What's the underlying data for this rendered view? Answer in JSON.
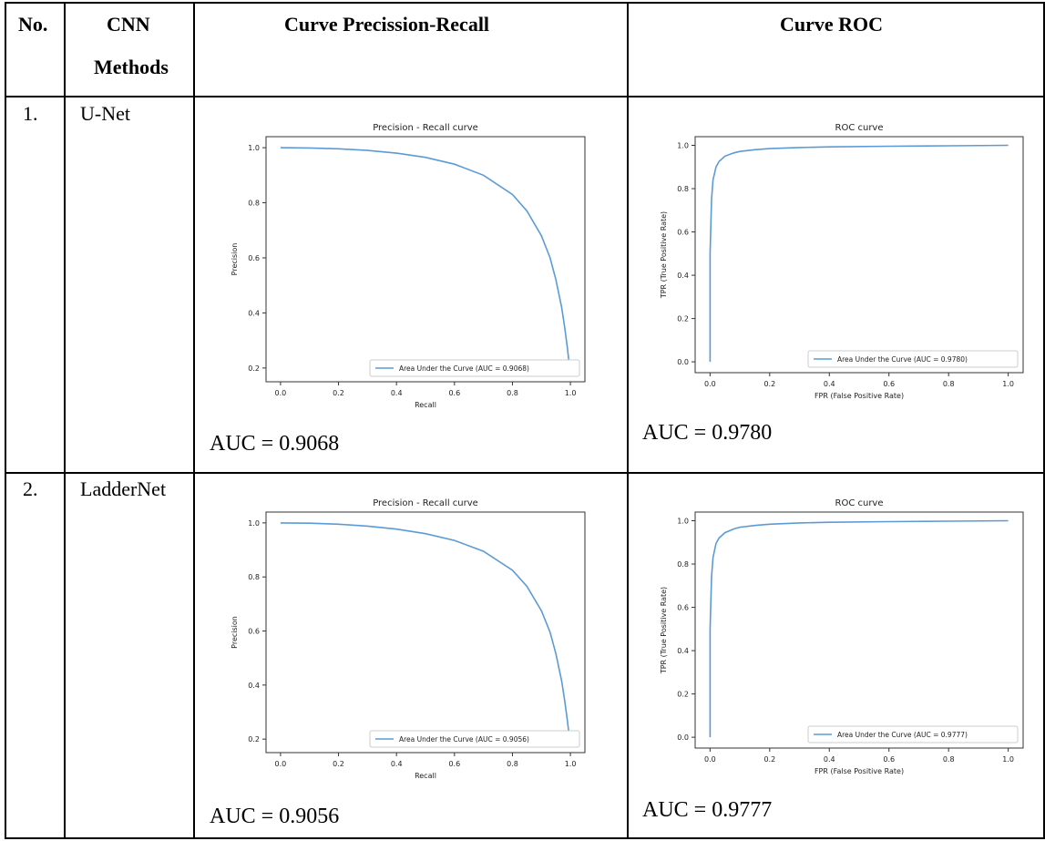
{
  "header": {
    "col_no": "No.",
    "col_method_1": "CNN",
    "col_method_2": "Methods",
    "col_pr": "Curve Precission-Recall",
    "col_roc": "Curve ROC"
  },
  "rows": [
    {
      "no": "1.",
      "method": "U-Net",
      "pr_auc_text": "AUC = 0.9068",
      "roc_auc_text": "AUC = 0.9780"
    },
    {
      "no": "2.",
      "method": "LadderNet",
      "pr_auc_text": "AUC = 0.9056",
      "roc_auc_text": "AUC = 0.9777"
    }
  ],
  "colors": {
    "curve": "#5b9bd5",
    "axis": "#333333"
  },
  "chart_data": [
    {
      "type": "line",
      "kind": "pr",
      "title": "Precision - Recall curve",
      "xlabel": "Recall",
      "ylabel": "Precision",
      "xlim": [
        -0.05,
        1.05
      ],
      "ylim": [
        0.15,
        1.04
      ],
      "xticks": [
        "0.0",
        "0.2",
        "0.4",
        "0.6",
        "0.8",
        "1.0"
      ],
      "yticks": [
        "0.2",
        "0.4",
        "0.6",
        "0.8",
        "1.0"
      ],
      "legend": "top-right",
      "series": [
        {
          "name": "Area Under the Curve (AUC = 0.9068)",
          "x": [
            0,
            0.1,
            0.2,
            0.3,
            0.4,
            0.5,
            0.6,
            0.7,
            0.8,
            0.85,
            0.9,
            0.93,
            0.95,
            0.97,
            0.98,
            0.99,
            1.0
          ],
          "y": [
            1.0,
            0.999,
            0.996,
            0.99,
            0.98,
            0.965,
            0.94,
            0.9,
            0.83,
            0.77,
            0.68,
            0.6,
            0.52,
            0.42,
            0.35,
            0.27,
            0.17
          ]
        }
      ]
    },
    {
      "type": "line",
      "kind": "roc",
      "title": "ROC curve",
      "xlabel": "FPR (False Positive Rate)",
      "ylabel": "TPR (True Positive Rate)",
      "xlim": [
        -0.05,
        1.05
      ],
      "ylim": [
        -0.05,
        1.04
      ],
      "xticks": [
        "0.0",
        "0.2",
        "0.4",
        "0.6",
        "0.8",
        "1.0"
      ],
      "yticks": [
        "0.0",
        "0.2",
        "0.4",
        "0.6",
        "0.8",
        "1.0"
      ],
      "legend": "bottom-right",
      "series": [
        {
          "name": "Area Under the Curve (AUC = 0.9780)",
          "x": [
            0,
            0.0,
            0.005,
            0.01,
            0.02,
            0.03,
            0.05,
            0.08,
            0.1,
            0.15,
            0.2,
            0.3,
            0.4,
            0.6,
            0.8,
            1.0
          ],
          "y": [
            0,
            0.5,
            0.75,
            0.84,
            0.9,
            0.925,
            0.95,
            0.965,
            0.972,
            0.98,
            0.985,
            0.99,
            0.993,
            0.996,
            0.998,
            1.0
          ]
        }
      ]
    },
    {
      "type": "line",
      "kind": "pr",
      "title": "Precision - Recall curve",
      "xlabel": "Recall",
      "ylabel": "Precision",
      "xlim": [
        -0.05,
        1.05
      ],
      "ylim": [
        0.15,
        1.04
      ],
      "xticks": [
        "0.0",
        "0.2",
        "0.4",
        "0.6",
        "0.8",
        "1.0"
      ],
      "yticks": [
        "0.2",
        "0.4",
        "0.6",
        "0.8",
        "1.0"
      ],
      "legend": "top-right",
      "series": [
        {
          "name": "Area Under the Curve (AUC = 0.9056)",
          "x": [
            0,
            0.1,
            0.2,
            0.3,
            0.4,
            0.5,
            0.6,
            0.7,
            0.8,
            0.85,
            0.9,
            0.93,
            0.95,
            0.97,
            0.98,
            0.99,
            1.0
          ],
          "y": [
            1.0,
            0.999,
            0.995,
            0.988,
            0.977,
            0.96,
            0.935,
            0.895,
            0.825,
            0.765,
            0.675,
            0.595,
            0.515,
            0.415,
            0.345,
            0.265,
            0.17
          ]
        }
      ]
    },
    {
      "type": "line",
      "kind": "roc",
      "title": "ROC curve",
      "xlabel": "FPR (False Positive Rate)",
      "ylabel": "TPR (True Positive Rate)",
      "xlim": [
        -0.05,
        1.05
      ],
      "ylim": [
        -0.05,
        1.04
      ],
      "xticks": [
        "0.0",
        "0.2",
        "0.4",
        "0.6",
        "0.8",
        "1.0"
      ],
      "yticks": [
        "0.0",
        "0.2",
        "0.4",
        "0.6",
        "0.8",
        "1.0"
      ],
      "legend": "bottom-right",
      "series": [
        {
          "name": "Area Under the Curve (AUC = 0.9777)",
          "x": [
            0,
            0.0,
            0.005,
            0.01,
            0.02,
            0.03,
            0.05,
            0.08,
            0.1,
            0.15,
            0.2,
            0.3,
            0.4,
            0.6,
            0.8,
            1.0
          ],
          "y": [
            0,
            0.5,
            0.74,
            0.83,
            0.895,
            0.92,
            0.945,
            0.962,
            0.97,
            0.978,
            0.984,
            0.99,
            0.993,
            0.996,
            0.998,
            1.0
          ]
        }
      ]
    }
  ]
}
